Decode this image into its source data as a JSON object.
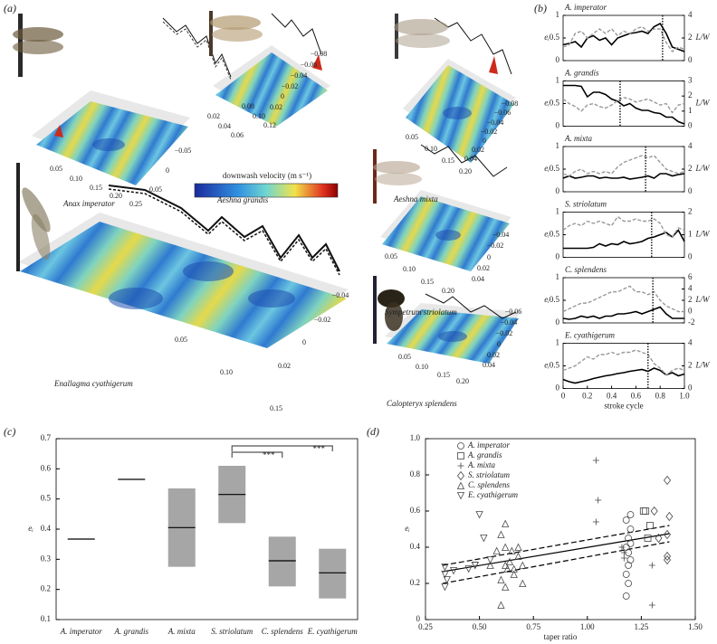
{
  "panel_labels": [
    "(a)",
    "(b)",
    "(c)",
    "(d)"
  ],
  "panel_a": {
    "colorbar_label": "downwash velocity (m s⁻¹)",
    "plots": [
      {
        "name": "Anax imperator",
        "ticks": [
          "0.05",
          "0.10",
          "0.15",
          "0.20",
          "0.25",
          "0.05",
          "0",
          "−0.05"
        ]
      },
      {
        "name": "Aeshna grandis",
        "ticks": [
          "0.02",
          "0.04",
          "0.06",
          "0.08",
          "0.10",
          "0.12",
          "−0.08",
          "−0.06",
          "−0.04",
          "−0.02",
          "0",
          "0.02"
        ]
      },
      {
        "name": "Aeshna mixta",
        "ticks": [
          "0.05",
          "0.10",
          "0.15",
          "0.20",
          "−0.08",
          "−0.06",
          "−0.04",
          "−0.02",
          "0",
          "0.02",
          "0.04"
        ]
      },
      {
        "name": "Enallagma cyathigerum",
        "ticks": [
          "0.05",
          "0.10",
          "0.15",
          "−0.04",
          "−0.02",
          "0",
          "0.02"
        ]
      },
      {
        "name": "Sympetrum striolatum",
        "ticks": [
          "0.05",
          "0.10",
          "0.15",
          "0.20",
          "−0.04",
          "−0.02",
          "0",
          "0.02",
          "0.04"
        ]
      },
      {
        "name": "Calopteryx splendens",
        "ticks": [
          "0.05",
          "0.10",
          "0.15",
          "0.20",
          "−0.06",
          "−0.04",
          "−0.02",
          "0",
          "0.02",
          "0.04"
        ]
      }
    ]
  },
  "chart_data": [
    {
      "type": "line",
      "title": "A. imperator",
      "ylabel": "eᵢ",
      "y2label": "L/W",
      "x": [
        0,
        0.05,
        0.1,
        0.15,
        0.2,
        0.25,
        0.3,
        0.35,
        0.4,
        0.45,
        0.5,
        0.55,
        0.6,
        0.65,
        0.7,
        0.75,
        0.8,
        0.85,
        0.9,
        0.95,
        1
      ],
      "xlim": [
        0,
        1
      ],
      "ylim": [
        0,
        1
      ],
      "yticks": [
        0,
        0.5,
        1
      ],
      "y2lim": [
        0,
        4
      ],
      "y2ticks": [
        0,
        2,
        4
      ],
      "marker_x": 0.82,
      "series": [
        {
          "color": "#000000",
          "values": [
            0.35,
            0.38,
            0.42,
            0.3,
            0.5,
            0.55,
            0.45,
            0.5,
            0.35,
            0.5,
            0.55,
            0.6,
            0.62,
            0.65,
            0.6,
            0.75,
            0.82,
            0.6,
            0.3,
            0.25,
            0.2
          ]
        },
        {
          "color": "#999999",
          "axis": "y2",
          "values": [
            1.2,
            1.4,
            2.4,
            2.6,
            2.0,
            2.4,
            2.8,
            2.4,
            2.8,
            2.2,
            2.6,
            2.4,
            2.8,
            3.0,
            2.6,
            2.8,
            2.8,
            1.6,
            0.8,
            1.2,
            1.0
          ]
        }
      ]
    },
    {
      "type": "line",
      "title": "A. grandis",
      "ylabel": "eᵢ",
      "y2label": "L/W",
      "x": [
        0,
        0.05,
        0.1,
        0.15,
        0.2,
        0.25,
        0.3,
        0.35,
        0.4,
        0.45,
        0.5,
        0.55,
        0.6,
        0.65,
        0.7,
        0.75,
        0.8,
        0.85,
        0.9,
        0.95,
        1
      ],
      "xlim": [
        0,
        1
      ],
      "ylim": [
        0,
        1
      ],
      "yticks": [
        0,
        0.5,
        1
      ],
      "y2lim": [
        0,
        3
      ],
      "y2ticks": [
        0,
        1,
        2,
        3
      ],
      "marker_x": 0.47,
      "series": [
        {
          "color": "#000000",
          "values": [
            0.9,
            0.9,
            0.9,
            0.88,
            0.65,
            0.75,
            0.75,
            0.7,
            0.6,
            0.55,
            0.45,
            0.5,
            0.4,
            0.35,
            0.35,
            0.3,
            0.28,
            0.2,
            0.2,
            0.1,
            0.05
          ]
        },
        {
          "color": "#999999",
          "axis": "y2",
          "values": [
            1.8,
            1.5,
            1.3,
            1.0,
            1.4,
            1.5,
            1.3,
            1.2,
            1.4,
            1.7,
            1.9,
            1.8,
            1.6,
            1.7,
            1.8,
            1.6,
            1.4,
            1.5,
            0.9,
            1.4,
            1.5
          ]
        }
      ]
    },
    {
      "type": "line",
      "title": "A. mixta",
      "ylabel": "eᵢ",
      "y2label": "L/W",
      "x": [
        0,
        0.05,
        0.1,
        0.15,
        0.2,
        0.25,
        0.3,
        0.35,
        0.4,
        0.45,
        0.5,
        0.55,
        0.6,
        0.65,
        0.7,
        0.75,
        0.8,
        0.85,
        0.9,
        0.95,
        1
      ],
      "xlim": [
        0,
        1
      ],
      "ylim": [
        0,
        1
      ],
      "yticks": [
        0,
        0.5,
        1
      ],
      "y2lim": [
        0,
        4
      ],
      "y2ticks": [
        0,
        2,
        4
      ],
      "marker_x": 0.68,
      "series": [
        {
          "color": "#000000",
          "values": [
            0.3,
            0.35,
            0.3,
            0.32,
            0.35,
            0.35,
            0.3,
            0.32,
            0.3,
            0.3,
            0.32,
            0.28,
            0.3,
            0.32,
            0.35,
            0.3,
            0.4,
            0.4,
            0.35,
            0.38,
            0.4
          ]
        },
        {
          "color": "#999999",
          "axis": "y2",
          "values": [
            1.6,
            1.4,
            1.8,
            2.0,
            1.6,
            1.8,
            1.6,
            1.8,
            1.6,
            2.2,
            2.6,
            2.8,
            3.0,
            3.2,
            3.0,
            3.2,
            2.6,
            2.0,
            1.8,
            1.6,
            1.8
          ]
        }
      ]
    },
    {
      "type": "line",
      "title": "S. striolatum",
      "ylabel": "eᵢ",
      "y2label": "L/W",
      "x": [
        0,
        0.05,
        0.1,
        0.15,
        0.2,
        0.25,
        0.3,
        0.35,
        0.4,
        0.45,
        0.5,
        0.55,
        0.6,
        0.65,
        0.7,
        0.75,
        0.8,
        0.85,
        0.9,
        0.95,
        1
      ],
      "xlim": [
        0,
        1
      ],
      "ylim": [
        0,
        1
      ],
      "yticks": [
        0,
        0.5,
        1
      ],
      "y2lim": [
        0,
        2
      ],
      "y2ticks": [
        0,
        1,
        2
      ],
      "marker_x": 0.73,
      "series": [
        {
          "color": "#000000",
          "values": [
            0.2,
            0.2,
            0.2,
            0.2,
            0.2,
            0.22,
            0.3,
            0.25,
            0.3,
            0.28,
            0.35,
            0.3,
            0.32,
            0.35,
            0.42,
            0.45,
            0.5,
            0.55,
            0.45,
            0.6,
            0.35
          ]
        },
        {
          "color": "#999999",
          "axis": "y2",
          "values": [
            1.2,
            1.4,
            1.5,
            1.4,
            1.6,
            1.5,
            1.6,
            1.5,
            1.4,
            1.8,
            1.6,
            1.6,
            1.7,
            1.6,
            1.6,
            1.7,
            1.5,
            1.0,
            0.9,
            1.3,
            1.2
          ]
        }
      ]
    },
    {
      "type": "line",
      "title": "C. splendens",
      "ylabel": "eᵢ",
      "y2label": "L/W",
      "x": [
        0,
        0.05,
        0.1,
        0.15,
        0.2,
        0.25,
        0.3,
        0.35,
        0.4,
        0.45,
        0.5,
        0.55,
        0.6,
        0.65,
        0.7,
        0.75,
        0.8,
        0.85,
        0.9,
        0.95,
        1
      ],
      "xlim": [
        0,
        1
      ],
      "ylim": [
        0,
        1
      ],
      "yticks": [
        0,
        0.5,
        1
      ],
      "y2lim": [
        -2,
        6
      ],
      "y2ticks": [
        -2,
        0,
        2,
        4,
        6
      ],
      "marker_x": 0.74,
      "series": [
        {
          "color": "#000000",
          "values": [
            0.1,
            0.08,
            0.1,
            0.15,
            0.12,
            0.15,
            0.1,
            0.15,
            0.15,
            0.2,
            0.2,
            0.22,
            0.25,
            0.2,
            0.25,
            0.3,
            0.35,
            0.2,
            0.1,
            0.1,
            0.1
          ]
        },
        {
          "color": "#999999",
          "axis": "y2",
          "values": [
            0,
            0.5,
            1,
            1.5,
            1.5,
            2,
            2.5,
            3,
            3.5,
            3.5,
            4,
            4.5,
            3.5,
            3.5,
            3,
            3.5,
            2,
            1,
            0.5,
            0,
            0
          ]
        }
      ]
    },
    {
      "type": "line",
      "title": "E. cyathigerum",
      "ylabel": "eᵢ",
      "y2label": "L/W",
      "xlabel": "stroke cycle",
      "x": [
        0,
        0.05,
        0.1,
        0.15,
        0.2,
        0.25,
        0.3,
        0.35,
        0.4,
        0.45,
        0.5,
        0.55,
        0.6,
        0.65,
        0.7,
        0.75,
        0.8,
        0.85,
        0.9,
        0.95,
        1
      ],
      "xlim": [
        0,
        1
      ],
      "xticks": [
        0,
        0.2,
        0.4,
        0.6,
        0.8,
        {
          "value": 1,
          "label": "1.0"
        }
      ],
      "ylim": [
        0,
        1
      ],
      "yticks": [
        0,
        0.5,
        1
      ],
      "y2lim": [
        0,
        4
      ],
      "y2ticks": [
        0,
        2,
        4
      ],
      "marker_x": 0.7,
      "series": [
        {
          "color": "#000000",
          "values": [
            0.2,
            0.15,
            0.12,
            0.15,
            0.18,
            0.22,
            0.25,
            0.28,
            0.3,
            0.33,
            0.35,
            0.38,
            0.4,
            0.42,
            0.38,
            0.45,
            0.4,
            0.3,
            0.35,
            0.28,
            0.32
          ]
        },
        {
          "color": "#999999",
          "axis": "y2",
          "values": [
            1.6,
            1.8,
            2.0,
            2.4,
            2.8,
            2.6,
            3.0,
            3.0,
            3.2,
            3.0,
            3.2,
            3.2,
            3.4,
            3.2,
            3.0,
            2.2,
            1.8,
            1.2,
            1.6,
            1.8,
            1.6
          ]
        }
      ]
    },
    {
      "type": "box",
      "ylabel": "eᵢ",
      "color": "#a6a6a6",
      "categories": [
        "A. imperator",
        "A. grandis",
        "A. mixta",
        "S. striolatum",
        "C. splendens",
        "E. cyathigerum"
      ],
      "medians": [
        0.367,
        0.565,
        0.405,
        0.515,
        0.295,
        0.255
      ],
      "box_low": [
        null,
        null,
        0.275,
        0.42,
        0.21,
        0.17
      ],
      "box_high": [
        null,
        null,
        0.535,
        0.61,
        0.375,
        0.335
      ],
      "ylim": [
        0.1,
        0.7
      ],
      "yticks": [
        0.1,
        0.2,
        0.3,
        0.4,
        0.5,
        0.6,
        0.7
      ],
      "significance": [
        {
          "pair": [
            "S. striolatum",
            "C. splendens"
          ],
          "label": "***"
        },
        {
          "pair": [
            "S. striolatum",
            "E. cyathigerum"
          ],
          "label": "***"
        }
      ]
    },
    {
      "type": "scatter",
      "xlabel": "taper ratio",
      "ylabel": "eᵢ",
      "xlim": [
        0.25,
        1.5
      ],
      "xticks": [
        0.25,
        {
          "value": 0.5,
          "label": "0.50"
        },
        0.75,
        {
          "value": 1,
          "label": "1.00"
        },
        1.25,
        {
          "value": 1.5,
          "label": "1.50"
        }
      ],
      "ylim": [
        0,
        1
      ],
      "yticks": [
        0,
        0.2,
        0.4,
        0.6,
        0.8,
        {
          "value": 1,
          "label": "1.0"
        }
      ],
      "series": [
        {
          "name": "A. imperator",
          "marker": "circle",
          "x": [
            1.18,
            1.18,
            1.19,
            1.2,
            1.19,
            1.18,
            1.2,
            1.19,
            1.2,
            1.18,
            1.2,
            1.19
          ],
          "y": [
            0.13,
            0.25,
            0.3,
            0.33,
            0.37,
            0.4,
            0.42,
            0.45,
            0.5,
            0.55,
            0.58,
            0.2
          ]
        },
        {
          "name": "A. grandis",
          "marker": "square",
          "x": [
            1.26,
            1.27,
            1.29,
            1.28
          ],
          "y": [
            0.6,
            0.6,
            0.52,
            0.45
          ]
        },
        {
          "name": "A. mixta",
          "marker": "plus",
          "x": [
            1.04,
            1.05,
            1.04,
            1.17,
            1.17,
            1.16,
            1.3,
            1.3
          ],
          "y": [
            0.88,
            0.66,
            0.54,
            0.37,
            0.34,
            0.4,
            0.3,
            0.08
          ]
        },
        {
          "name": "S. striolatum",
          "marker": "diamond",
          "x": [
            1.37,
            1.38,
            1.37,
            1.33,
            1.37,
            1.37,
            1.31
          ],
          "y": [
            0.77,
            0.57,
            0.47,
            0.45,
            0.35,
            0.33,
            0.6
          ]
        },
        {
          "name": "C. splendens",
          "marker": "triangle-up",
          "x": [
            0.62,
            0.6,
            0.62,
            0.65,
            0.68,
            0.7,
            0.63,
            0.66,
            0.6,
            0.58,
            0.64,
            0.7,
            0.68,
            0.62,
            0.55,
            0.6,
            0.66,
            0.62
          ],
          "y": [
            0.53,
            0.47,
            0.4,
            0.38,
            0.35,
            0.3,
            0.28,
            0.25,
            0.22,
            0.38,
            0.32,
            0.2,
            0.4,
            0.18,
            0.3,
            0.08,
            0.28,
            0.3
          ]
        },
        {
          "name": "E. cyathigerum",
          "marker": "triangle-down",
          "x": [
            0.34,
            0.34,
            0.34,
            0.38,
            0.45,
            0.48,
            0.5,
            0.52,
            0.48,
            0.55,
            0.35
          ],
          "y": [
            0.29,
            0.25,
            0.18,
            0.27,
            0.28,
            0.3,
            0.58,
            0.45,
            0.3,
            0.33,
            0.22
          ]
        }
      ],
      "fit": {
        "x": [
          0.33,
          1.38
        ],
        "y": [
          0.265,
          0.475
        ]
      },
      "ci_upper": {
        "x": [
          0.33,
          1.38
        ],
        "y": [
          0.3,
          0.52
        ]
      },
      "ci_lower": {
        "x": [
          0.33,
          1.38
        ],
        "y": [
          0.2,
          0.43
        ]
      }
    }
  ]
}
